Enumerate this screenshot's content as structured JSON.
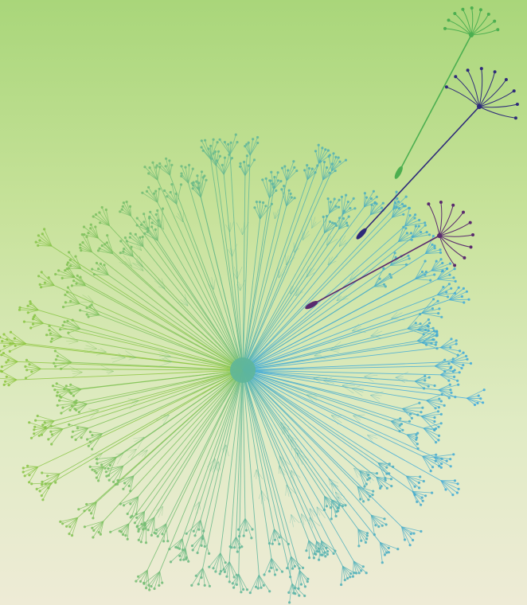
{
  "scene": {
    "subject": "dandelion-seed-head-with-floating-seeds",
    "background_top": "#a9d67a",
    "background_bottom": "#eeebd6"
  },
  "palette": {
    "seed_head_left": "#8dc63f",
    "seed_head_center": "#5fb69a",
    "seed_head_right": "#3ea9e0",
    "seed_green": "#4caf50",
    "seed_indigo": "#2e2a7a",
    "seed_purple": "#5a2a6e"
  }
}
